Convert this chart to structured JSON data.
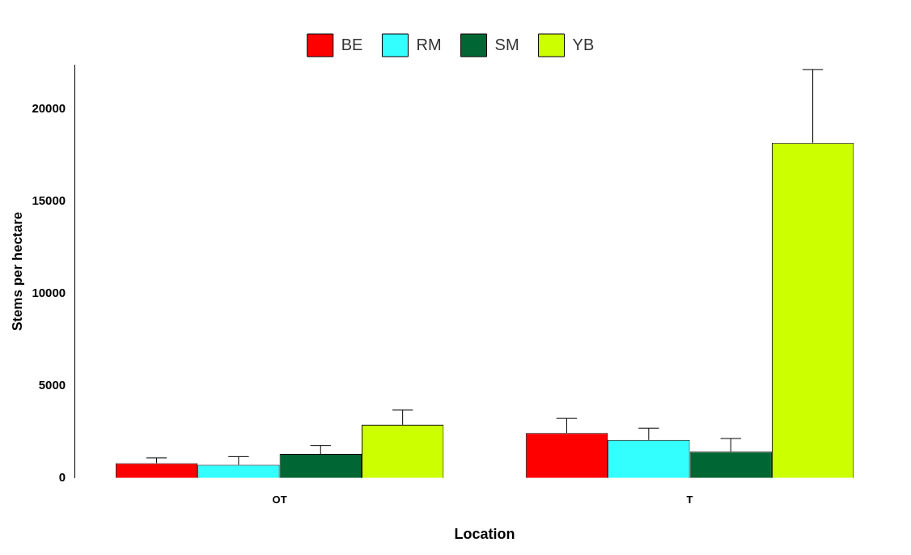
{
  "chart_data": {
    "type": "bar",
    "xlabel": "Location",
    "ylabel": "Stems per hectare",
    "categories": [
      "OT",
      "T"
    ],
    "series": [
      {
        "name": "BE",
        "color": "#ff0000",
        "values": [
          800,
          2440
        ],
        "errors": [
          [
            800,
            1090
          ],
          [
            2440,
            3230
          ]
        ]
      },
      {
        "name": "RM",
        "color": "#33ffff",
        "values": [
          710,
          2060
        ],
        "errors": [
          [
            710,
            1160
          ],
          [
            2060,
            2700
          ]
        ]
      },
      {
        "name": "SM",
        "color": "#006633",
        "values": [
          1310,
          1430
        ],
        "errors": [
          [
            1310,
            1760
          ],
          [
            1430,
            2140
          ]
        ]
      },
      {
        "name": "YB",
        "color": "#ccff00",
        "values": [
          2890,
          18160
        ],
        "errors": [
          [
            2890,
            3680
          ],
          [
            18160,
            22140
          ]
        ]
      }
    ],
    "ylim": [
      0,
      22400
    ],
    "yticks": [
      0,
      5000,
      10000,
      15000,
      20000
    ],
    "grid": false,
    "legend": "top"
  }
}
